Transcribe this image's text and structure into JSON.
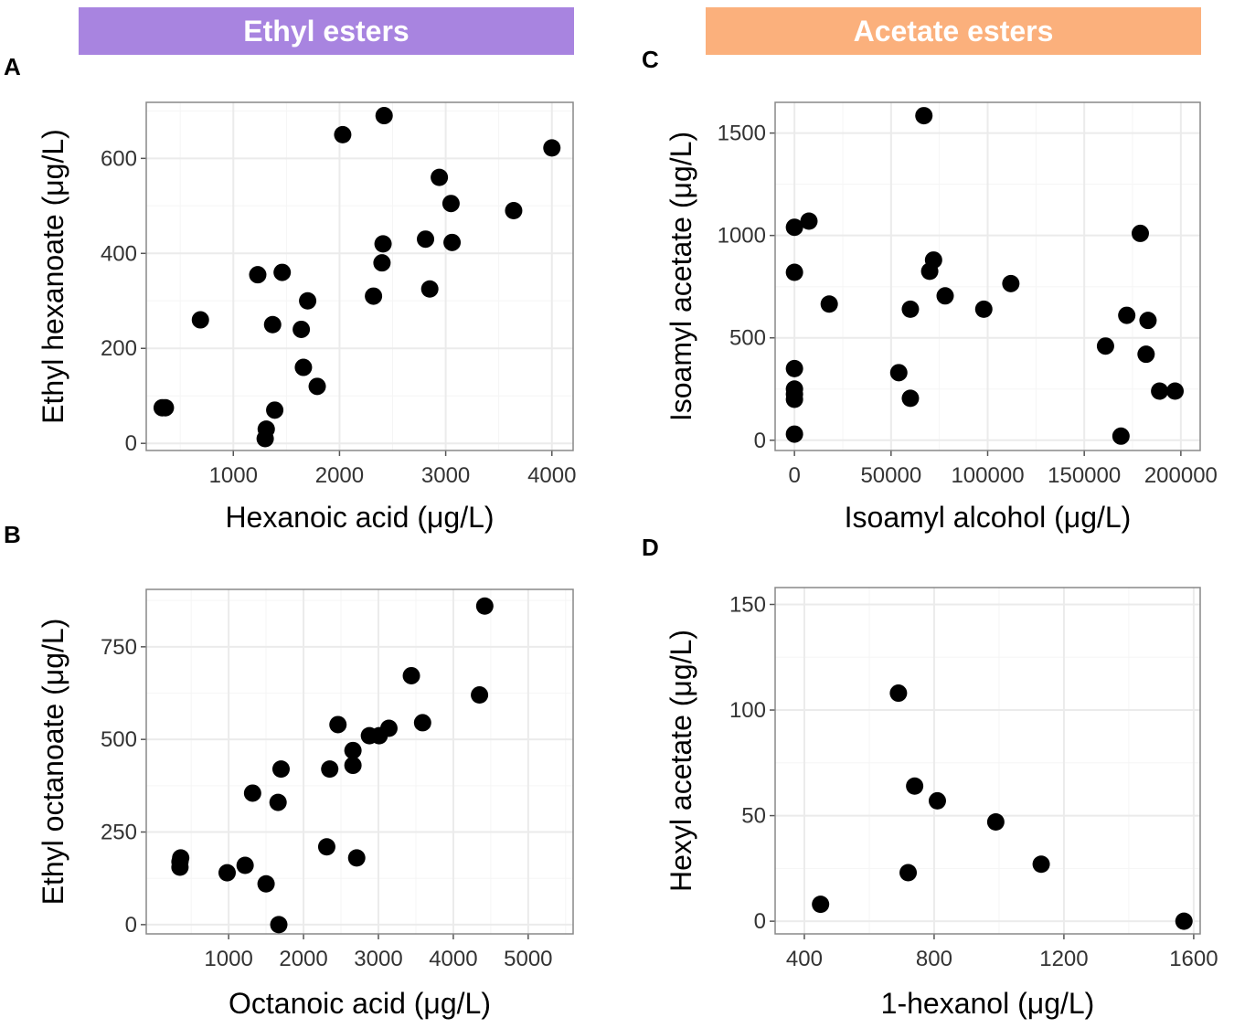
{
  "banners": {
    "ethyl": {
      "label": "Ethyl esters",
      "color": "#a884e0"
    },
    "acetate": {
      "label": "Acetate esters",
      "color": "#fbb07c"
    }
  },
  "panel_labels": {
    "A": "A",
    "B": "B",
    "C": "C",
    "D": "D"
  },
  "colors": {
    "panel_bg": "#ffffff",
    "grid": "#ebebeb",
    "border": "#888888",
    "point": "#000000"
  },
  "chart_data": [
    {
      "id": "A",
      "type": "scatter",
      "xlabel": "Hexanoic acid (μg/L)",
      "ylabel": "Ethyl hexanoate (μg/L)",
      "xlim": [
        180,
        4200
      ],
      "ylim": [
        -15,
        718
      ],
      "xticks": [
        1000,
        2000,
        3000,
        4000
      ],
      "xtick_labels": [
        "1000",
        "2000",
        "3000",
        "4000"
      ],
      "yticks": [
        0,
        200,
        400,
        600
      ],
      "ytick_labels": [
        "0",
        "200",
        "400",
        "600"
      ],
      "points": [
        [
          330,
          75
        ],
        [
          360,
          75
        ],
        [
          690,
          260
        ],
        [
          1230,
          355
        ],
        [
          1300,
          10
        ],
        [
          1310,
          30
        ],
        [
          1370,
          250
        ],
        [
          1390,
          70
        ],
        [
          1460,
          360
        ],
        [
          1640,
          240
        ],
        [
          1660,
          160
        ],
        [
          1700,
          300
        ],
        [
          1790,
          120
        ],
        [
          2030,
          650
        ],
        [
          2320,
          310
        ],
        [
          2400,
          380
        ],
        [
          2410,
          420
        ],
        [
          2420,
          690
        ],
        [
          2810,
          430
        ],
        [
          2850,
          325
        ],
        [
          2940,
          560
        ],
        [
          3050,
          505
        ],
        [
          3060,
          423
        ],
        [
          3640,
          490
        ],
        [
          4000,
          622
        ]
      ]
    },
    {
      "id": "B",
      "type": "scatter",
      "xlabel": "Octanoic acid (μg/L)",
      "ylabel": "Ethyl octanoate (μg/L)",
      "xlim": [
        -100,
        5600
      ],
      "ylim": [
        -25,
        905
      ],
      "xticks": [
        1000,
        2000,
        3000,
        4000,
        5000
      ],
      "xtick_labels": [
        "1000",
        "2000",
        "3000",
        "4000",
        "5000"
      ],
      "yticks": [
        0,
        250,
        500,
        750
      ],
      "ytick_labels": [
        "0",
        "250",
        "500",
        "750"
      ],
      "points": [
        [
          350,
          155
        ],
        [
          350,
          170
        ],
        [
          360,
          180
        ],
        [
          980,
          140
        ],
        [
          1220,
          160
        ],
        [
          1320,
          355
        ],
        [
          1500,
          110
        ],
        [
          1660,
          330
        ],
        [
          1670,
          0
        ],
        [
          1700,
          420
        ],
        [
          2310,
          210
        ],
        [
          2350,
          420
        ],
        [
          2460,
          540
        ],
        [
          2660,
          470
        ],
        [
          2660,
          430
        ],
        [
          2710,
          180
        ],
        [
          2880,
          510
        ],
        [
          3010,
          510
        ],
        [
          3140,
          530
        ],
        [
          3440,
          672
        ],
        [
          3590,
          545
        ],
        [
          4350,
          620
        ],
        [
          4420,
          860
        ]
      ]
    },
    {
      "id": "C",
      "type": "scatter",
      "xlabel": "Isoamyl alcohol (μg/L)",
      "ylabel": "Isoamyl acetate (μg/L)",
      "xlim": [
        -10000,
        210000
      ],
      "ylim": [
        -50,
        1650
      ],
      "xticks": [
        0,
        50000,
        100000,
        150000,
        200000
      ],
      "xtick_labels": [
        "0",
        "50000",
        "100000",
        "150000",
        "200000"
      ],
      "yticks": [
        0,
        500,
        1000,
        1500
      ],
      "ytick_labels": [
        "0",
        "500",
        "1000",
        "1500"
      ],
      "points": [
        [
          0,
          30
        ],
        [
          0,
          200
        ],
        [
          0,
          225
        ],
        [
          0,
          250
        ],
        [
          0,
          350
        ],
        [
          0,
          820
        ],
        [
          0,
          1040
        ],
        [
          7500,
          1070
        ],
        [
          18000,
          665
        ],
        [
          54000,
          330
        ],
        [
          60000,
          205
        ],
        [
          60000,
          640
        ],
        [
          67000,
          1585
        ],
        [
          70000,
          825
        ],
        [
          72000,
          880
        ],
        [
          78000,
          705
        ],
        [
          98000,
          640
        ],
        [
          112000,
          765
        ],
        [
          161000,
          460
        ],
        [
          169000,
          20
        ],
        [
          172000,
          610
        ],
        [
          179000,
          1010
        ],
        [
          182000,
          420
        ],
        [
          183000,
          585
        ],
        [
          189000,
          240
        ],
        [
          197000,
          240
        ]
      ]
    },
    {
      "id": "D",
      "type": "scatter",
      "xlabel": "1-hexanol (μg/L)",
      "ylabel": "Hexyl acetate (μg/L)",
      "xlim": [
        310,
        1620
      ],
      "ylim": [
        -6,
        158
      ],
      "xticks": [
        400,
        800,
        1200,
        1600
      ],
      "xtick_labels": [
        "400",
        "800",
        "1200",
        "1600"
      ],
      "yticks": [
        0,
        50,
        100,
        150
      ],
      "ytick_labels": [
        "0",
        "50",
        "100",
        "150"
      ],
      "points": [
        [
          450,
          8
        ],
        [
          690,
          108
        ],
        [
          720,
          23
        ],
        [
          740,
          64
        ],
        [
          810,
          57
        ],
        [
          990,
          47
        ],
        [
          1130,
          27
        ],
        [
          1570,
          0
        ]
      ]
    }
  ]
}
